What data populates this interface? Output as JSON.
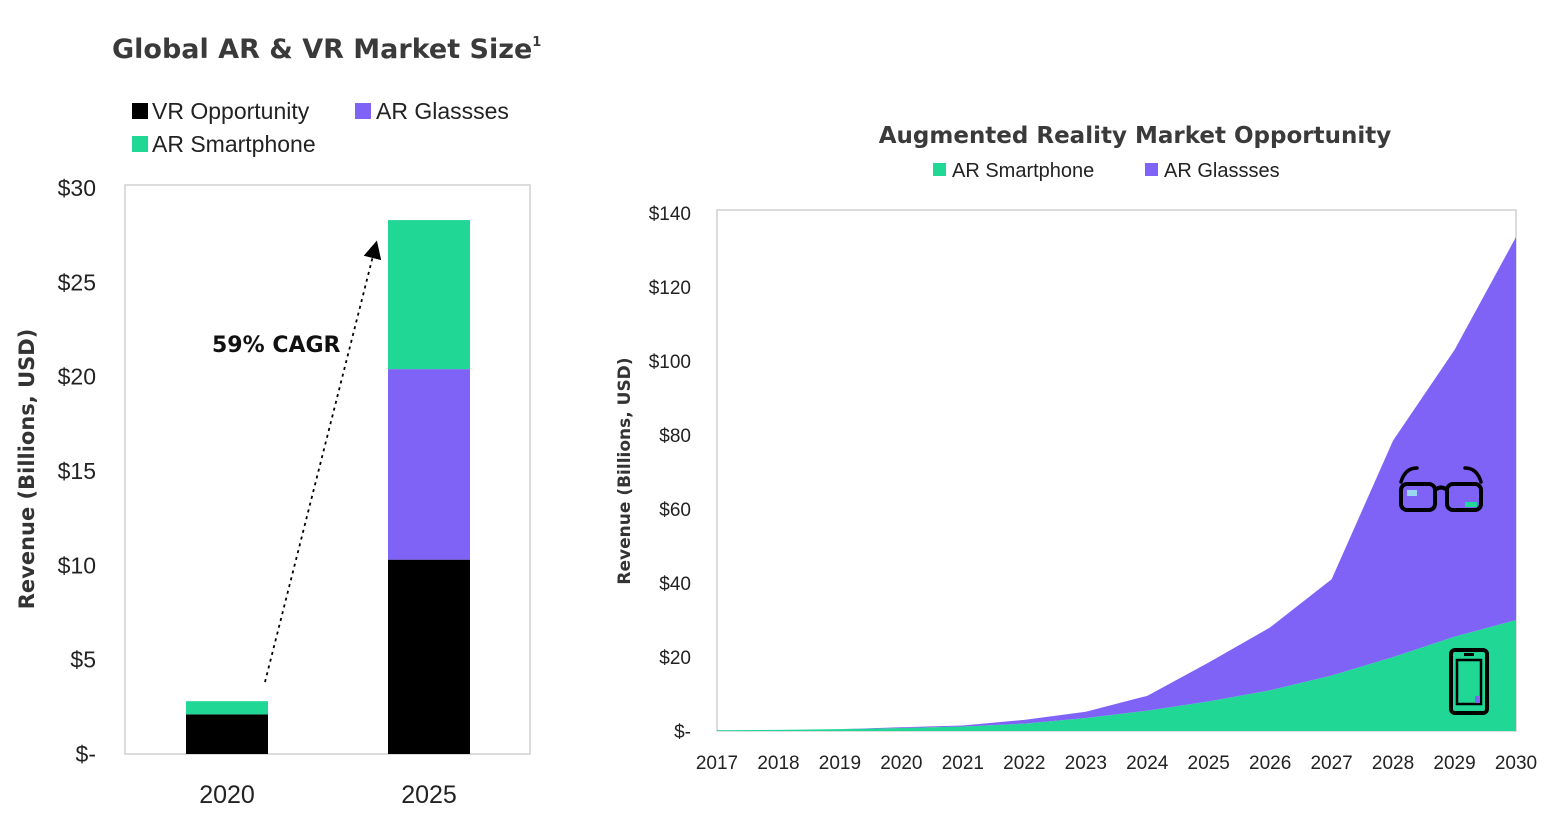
{
  "chart_data": [
    {
      "type": "bar",
      "title": "Global AR & VR Market Size",
      "title_sup": "1",
      "ylabel": "Revenue (Billions, USD)",
      "ylim": [
        0,
        30
      ],
      "yticks": [
        "$-",
        "$5",
        "$10",
        "$15",
        "$20",
        "$25",
        "$30"
      ],
      "categories": [
        "2020",
        "2025"
      ],
      "series": [
        {
          "name": "VR Opportunity",
          "color": "#000000",
          "values": [
            2.1,
            10.3
          ]
        },
        {
          "name": "AR Glassses",
          "color": "#7f62f6",
          "values": [
            0,
            10.1
          ]
        },
        {
          "name": "AR Smartphone",
          "color": "#21d796",
          "values": [
            0.7,
            7.9
          ]
        }
      ],
      "annotation": "59% CAGR",
      "legend": "top-left",
      "grid": false
    },
    {
      "type": "area",
      "stacked": true,
      "title": "Augmented Reality Market Opportunity",
      "ylabel": "Revenue (Billions, USD)",
      "ylim": [
        0,
        140
      ],
      "yticks": [
        "$-",
        "$20",
        "$40",
        "$60",
        "$80",
        "$100",
        "$120",
        "$140"
      ],
      "x": [
        "2017",
        "2018",
        "2019",
        "2020",
        "2021",
        "2022",
        "2023",
        "2024",
        "2025",
        "2026",
        "2027",
        "2028",
        "2029",
        "2030"
      ],
      "series": [
        {
          "name": "AR Smartphone",
          "color": "#21d796",
          "values": [
            0.2,
            0.3,
            0.5,
            0.8,
            1.2,
            2,
            3.5,
            5.5,
            8,
            11,
            15,
            20,
            25.5,
            30
          ]
        },
        {
          "name": "AR Glassses",
          "color": "#7f62f6",
          "values": [
            0,
            0,
            0,
            0.2,
            0.3,
            1,
            1.7,
            4,
            10.5,
            17,
            26,
            58.5,
            77.5,
            103.5
          ]
        }
      ],
      "icons": [
        "glasses-icon",
        "smartphone-icon"
      ],
      "legend": "top-center",
      "grid": false
    }
  ]
}
